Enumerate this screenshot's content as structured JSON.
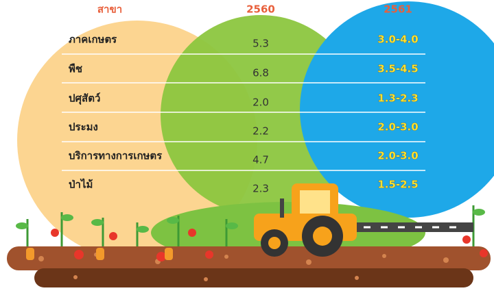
{
  "table": {
    "header": [
      "สาขา",
      "2560",
      "2561"
    ],
    "rows": [
      [
        "ภาคเกษตร",
        "5.3",
        "3.0-4.0"
      ],
      [
        "พืช",
        "6.8",
        "3.5-4.5"
      ],
      [
        "ปศุสัตว์",
        "2.0",
        "1.3-2.3"
      ],
      [
        "ประมง",
        "2.2",
        "2.0-3.0"
      ],
      [
        "บริการทางการเกษตร",
        "4.7",
        "2.0-3.0"
      ],
      [
        "ป่าไม้",
        "2.3",
        "1.5-2.5"
      ]
    ]
  }
}
